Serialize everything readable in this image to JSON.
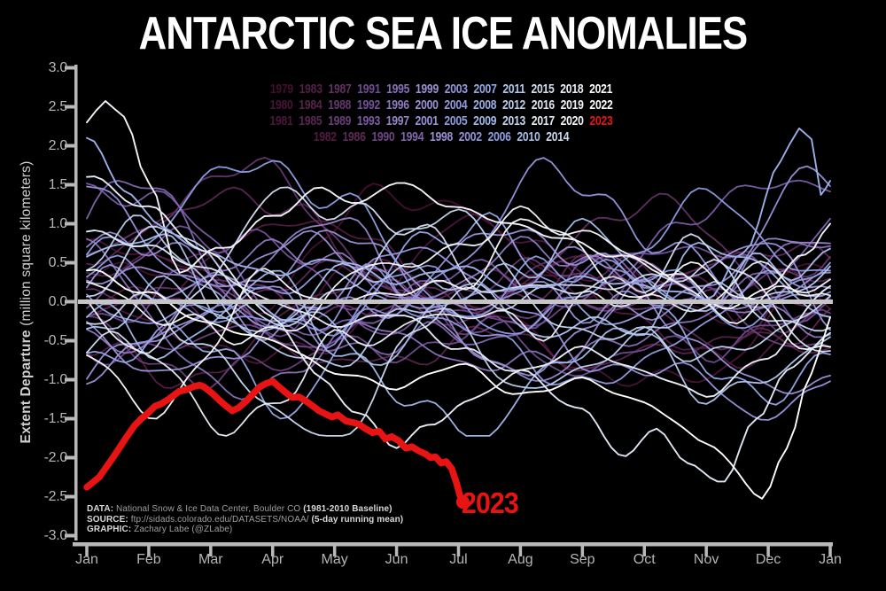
{
  "title": "ANTARCTIC SEA ICE ANOMALIES",
  "colors": {
    "background": "#000000",
    "axis": "#b9b9b9",
    "zero_line": "#c6c6c6",
    "highlight_red": "#e81313",
    "title_text": "#ffffff",
    "tick_label": "#b5b5b5"
  },
  "y_axis": {
    "title_bold": "Extent Departure",
    "title_rest": " (million square kilometers)",
    "tick_labels": [
      "3.0",
      "2.5",
      "2.0",
      "1.5",
      "1.0",
      "0.5",
      "0.0",
      "-0.5",
      "-1.0",
      "-1.5",
      "-2.0",
      "-2.5",
      "-3.0"
    ],
    "tick_values": [
      3,
      2.5,
      2,
      1.5,
      1,
      0.5,
      0,
      -0.5,
      -1,
      -1.5,
      -2,
      -2.5,
      -3
    ]
  },
  "x_axis": {
    "tick_labels": [
      "Jan",
      "Feb",
      "Mar",
      "Apr",
      "May",
      "Jun",
      "Jul",
      "Aug",
      "Sep",
      "Oct",
      "Nov",
      "Dec",
      "Jan"
    ]
  },
  "legend": {
    "rows": [
      [
        "1979",
        "1983",
        "1987",
        "1991",
        "1995",
        "1999",
        "2003",
        "2007",
        "2011",
        "2015",
        "2018",
        "2021"
      ],
      [
        "1980",
        "1984",
        "1988",
        "1992",
        "1996",
        "2000",
        "2004",
        "2008",
        "2012",
        "2016",
        "2019",
        "2022"
      ],
      [
        "1981",
        "1985",
        "1989",
        "1993",
        "1997",
        "2001",
        "2005",
        "2009",
        "2013",
        "2017",
        "2020",
        "2023"
      ],
      [
        "1982",
        "1986",
        "1990",
        "1994",
        "1998",
        "2002",
        "2006",
        "2010",
        "2014"
      ]
    ],
    "year_colors": {
      "1979": "#451030",
      "1980": "#491435",
      "1981": "#4c173b",
      "1982": "#501b40",
      "1983": "#531f46",
      "1984": "#57234b",
      "1985": "#5a2651",
      "1986": "#5e2a56",
      "1987": "#623162",
      "1988": "#65376d",
      "1989": "#693e79",
      "1990": "#6d4484",
      "1991": "#704b90",
      "1992": "#74519b",
      "1993": "#7b5ba4",
      "1994": "#8166ad",
      "1995": "#8870b6",
      "1996": "#8f7abe",
      "1997": "#9585c7",
      "1998": "#9c8fd0",
      "1999": "#9b90d3",
      "2000": "#9a92d6",
      "2001": "#9893d9",
      "2002": "#9794dc",
      "2003": "#9597de",
      "2004": "#939adf",
      "2005": "#919ce1",
      "2006": "#8f9fe2",
      "2007": "#95a7e4",
      "2008": "#9bafe6",
      "2009": "#a1b8e8",
      "2010": "#a7c0ea",
      "2011": "#b0c7ec",
      "2012": "#bacded",
      "2013": "#c3d4ef",
      "2014": "#ccdaf0",
      "2015": "#d5dff1",
      "2016": "#dde5f2",
      "2017": "#e6eaf2",
      "2018": "#ebeef5",
      "2019": "#f0f2f7",
      "2020": "#f5f6fa",
      "2021": "#fafbfc",
      "2022": "#ffffff",
      "2023": "#e81313"
    }
  },
  "annotation_2023": "2023",
  "footer": {
    "lines": [
      {
        "label": "DATA:",
        "text": " National Snow & Ice Data Center, Boulder CO ",
        "bold_suffix": "(1981-2010 Baseline)"
      },
      {
        "label": "SOURCE:",
        "text": " ftp://sidads.colorado.edu/DATASETS/NOAA/ ",
        "bold_suffix": "(5-day running mean)"
      },
      {
        "label": "GRAPHIC:",
        "text": " Zachary Labe (@ZLabe)",
        "bold_suffix": ""
      }
    ]
  },
  "chart_data": {
    "type": "line",
    "title": "ANTARCTIC SEA ICE ANOMALIES",
    "ylabel": "Extent Departure (million square kilometers)",
    "ylim": [
      -3,
      3
    ],
    "grid": false,
    "zero_baseline": 0,
    "x_months": [
      "Jan",
      "Feb",
      "Mar",
      "Apr",
      "May",
      "Jun",
      "Jul",
      "Aug",
      "Sep",
      "Oct",
      "Nov",
      "Dec",
      "Jan"
    ],
    "series_2023": {
      "name": "2023",
      "color": "#e81313",
      "units": "million sq km departure",
      "points_month_value": [
        [
          0.0,
          -2.38
        ],
        [
          0.2,
          -2.25
        ],
        [
          0.43,
          -1.99
        ],
        [
          0.63,
          -1.75
        ],
        [
          0.77,
          -1.59
        ],
        [
          0.88,
          -1.5
        ],
        [
          0.96,
          -1.45
        ],
        [
          1.1,
          -1.34
        ],
        [
          1.2,
          -1.31
        ],
        [
          1.32,
          -1.25
        ],
        [
          1.49,
          -1.15
        ],
        [
          1.6,
          -1.13
        ],
        [
          1.72,
          -1.09
        ],
        [
          1.82,
          -1.07
        ],
        [
          1.89,
          -1.09
        ],
        [
          2.03,
          -1.18
        ],
        [
          2.15,
          -1.27
        ],
        [
          2.25,
          -1.34
        ],
        [
          2.35,
          -1.4
        ],
        [
          2.45,
          -1.36
        ],
        [
          2.58,
          -1.27
        ],
        [
          2.78,
          -1.1
        ],
        [
          2.89,
          -1.05
        ],
        [
          3.0,
          -1.02
        ],
        [
          3.1,
          -1.09
        ],
        [
          3.22,
          -1.17
        ],
        [
          3.32,
          -1.23
        ],
        [
          3.42,
          -1.22
        ],
        [
          3.53,
          -1.27
        ],
        [
          3.65,
          -1.34
        ],
        [
          3.75,
          -1.4
        ],
        [
          3.85,
          -1.44
        ],
        [
          3.96,
          -1.48
        ],
        [
          4.05,
          -1.45
        ],
        [
          4.18,
          -1.53
        ],
        [
          4.3,
          -1.55
        ],
        [
          4.39,
          -1.57
        ],
        [
          4.5,
          -1.63
        ],
        [
          4.61,
          -1.68
        ],
        [
          4.72,
          -1.66
        ],
        [
          4.82,
          -1.76
        ],
        [
          4.92,
          -1.73
        ],
        [
          5.03,
          -1.78
        ],
        [
          5.15,
          -1.88
        ],
        [
          5.25,
          -1.86
        ],
        [
          5.35,
          -1.91
        ],
        [
          5.46,
          -1.95
        ],
        [
          5.55,
          -2.0
        ],
        [
          5.63,
          -1.99
        ],
        [
          5.72,
          -2.07
        ],
        [
          5.8,
          -2.05
        ],
        [
          5.89,
          -2.14
        ],
        [
          5.97,
          -2.33
        ],
        [
          6.02,
          -2.48
        ],
        [
          6.07,
          -2.57
        ]
      ]
    },
    "notable_background_series": [
      {
        "year": "2019",
        "points_month_value": [
          [
            0,
            2.3
          ],
          [
            0.3,
            2.55
          ],
          [
            0.6,
            2.4
          ],
          [
            1.0,
            1.5
          ],
          [
            1.5,
            0.4
          ],
          [
            2.2,
            0.7
          ],
          [
            3.0,
            1.1
          ],
          [
            3.8,
            1.45
          ],
          [
            4.4,
            1.25
          ],
          [
            5.0,
            1.55
          ],
          [
            5.8,
            1.25
          ],
          [
            6.6,
            1.05
          ],
          [
            7.5,
            0.85
          ],
          [
            8.5,
            0.6
          ],
          [
            9.5,
            0.35
          ],
          [
            10.4,
            -0.1
          ],
          [
            11.0,
            0.2
          ],
          [
            11.6,
            0.6
          ],
          [
            12,
            1.0
          ]
        ]
      },
      {
        "year": "2008",
        "points_month_value": [
          [
            0,
            2.1
          ],
          [
            0.6,
            1.45
          ],
          [
            1.2,
            0.95
          ],
          [
            2.0,
            0.6
          ],
          [
            3.0,
            0.35
          ],
          [
            4.0,
            0.55
          ],
          [
            5.0,
            0.25
          ],
          [
            6.0,
            0.45
          ],
          [
            7.0,
            0.15
          ],
          [
            8.0,
            0.3
          ],
          [
            9.0,
            0.2
          ],
          [
            10.0,
            0.05
          ],
          [
            10.6,
            0.6
          ],
          [
            11.2,
            1.8
          ],
          [
            11.5,
            2.2
          ],
          [
            11.7,
            2.1
          ],
          [
            11.85,
            1.4
          ],
          [
            12,
            1.55
          ]
        ]
      },
      {
        "year": "2016",
        "points_month_value": [
          [
            0,
            0.9
          ],
          [
            1,
            0.7
          ],
          [
            2,
            0.4
          ],
          [
            3,
            0.0
          ],
          [
            4,
            -0.3
          ],
          [
            5,
            -0.15
          ],
          [
            6,
            -0.6
          ],
          [
            7,
            -0.9
          ],
          [
            8,
            -1.4
          ],
          [
            8.7,
            -2.0
          ],
          [
            9.2,
            -1.6
          ],
          [
            9.7,
            -2.1
          ],
          [
            10.3,
            -2.3
          ],
          [
            10.8,
            -1.5
          ],
          [
            11.3,
            -0.9
          ],
          [
            12,
            -0.4
          ]
        ]
      },
      {
        "year": "2022",
        "points_month_value": [
          [
            0,
            0.4
          ],
          [
            1,
            0.1
          ],
          [
            2,
            -0.3
          ],
          [
            3,
            -0.5
          ],
          [
            4,
            -0.9
          ],
          [
            5,
            -1.1
          ],
          [
            6,
            -0.8
          ],
          [
            7,
            -1.2
          ],
          [
            8,
            -1.0
          ],
          [
            9,
            -1.3
          ],
          [
            10,
            -1.8
          ],
          [
            10.9,
            -2.5
          ],
          [
            11.3,
            -1.9
          ],
          [
            11.7,
            -0.9
          ],
          [
            12,
            -0.2
          ]
        ]
      },
      {
        "year": "2017",
        "points_month_value": [
          [
            0,
            1.6
          ],
          [
            1,
            1.2
          ],
          [
            2,
            0.6
          ],
          [
            3,
            -0.2
          ],
          [
            3.8,
            -1.0
          ],
          [
            4.4,
            -1.45
          ],
          [
            5.0,
            -1.85
          ],
          [
            5.5,
            -1.6
          ],
          [
            6.1,
            -1.3
          ],
          [
            7.0,
            -0.9
          ],
          [
            8.0,
            -0.6
          ],
          [
            9.0,
            -0.9
          ],
          [
            10.0,
            -1.2
          ],
          [
            11.0,
            -0.7
          ],
          [
            12,
            0.2
          ]
        ]
      }
    ],
    "background_years_note": "All years 1979-2022 drawn as thin anomaly traces, mostly within -1.7 to +2.0 million sq km; colors fade dark purple (1979) to white (2022); 2023 highlighted thick red ending early July at about -2.6."
  }
}
